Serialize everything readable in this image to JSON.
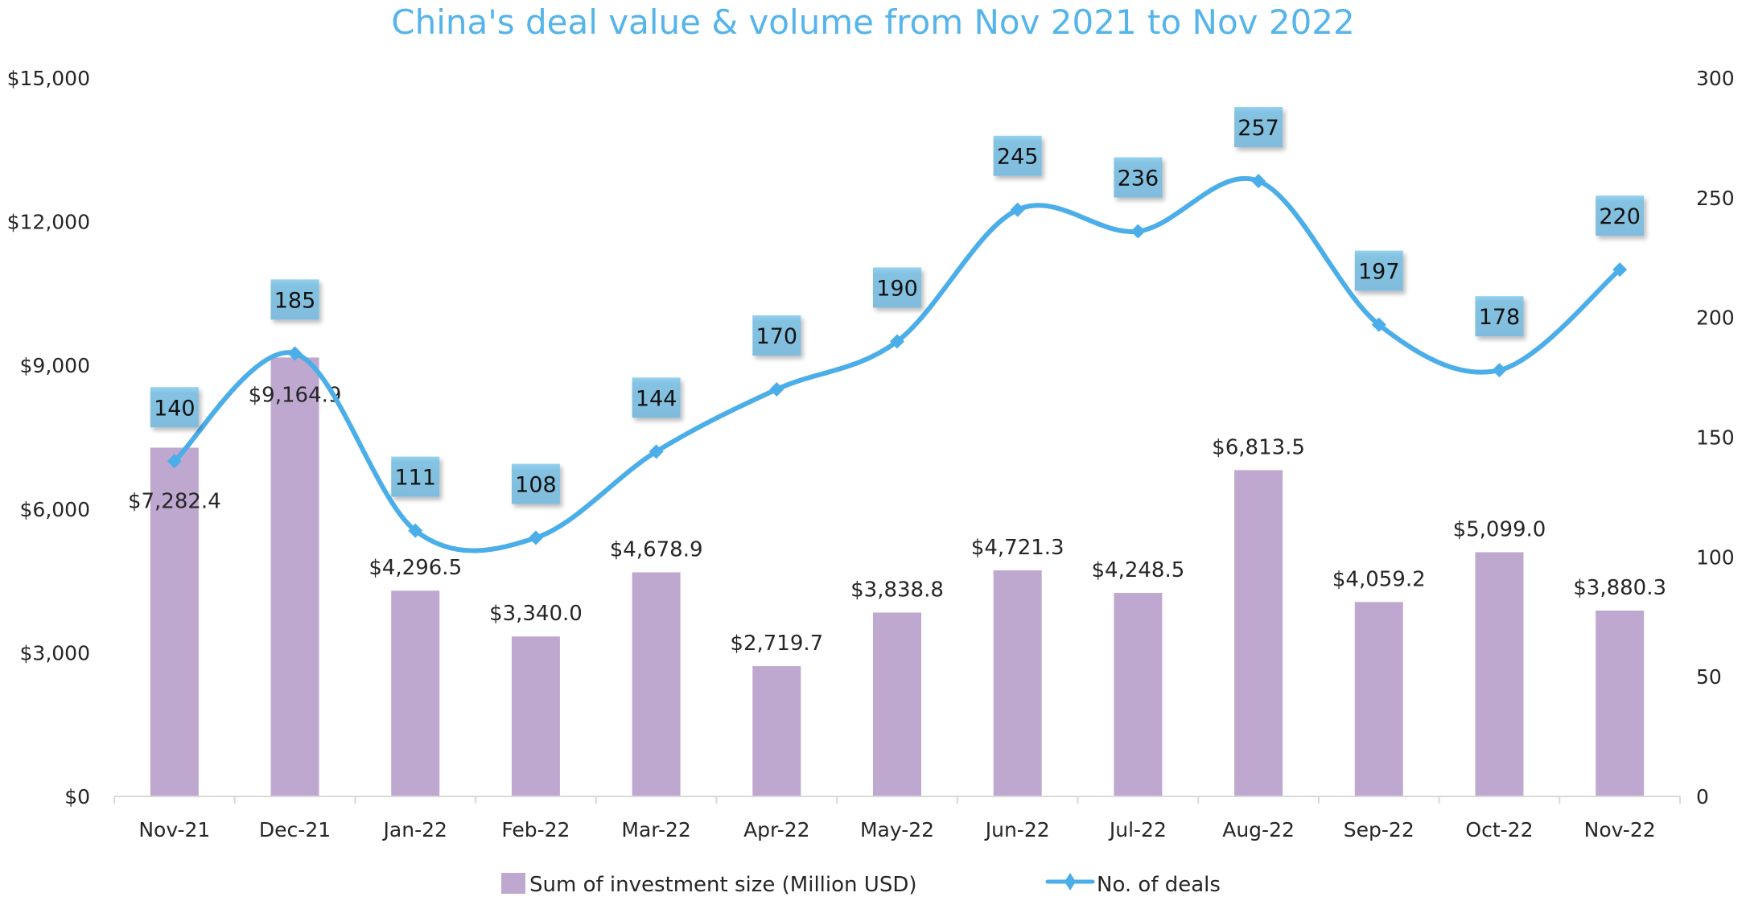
{
  "chart_data": {
    "type": "bar+line",
    "title": "China's deal value & volume from Nov 2021 to Nov 2022",
    "categories": [
      "Nov-21",
      "Dec-21",
      "Jan-22",
      "Feb-22",
      "Mar-22",
      "Apr-22",
      "May-22",
      "Jun-22",
      "Jul-22",
      "Aug-22",
      "Sep-22",
      "Oct-22",
      "Nov-22"
    ],
    "series": [
      {
        "name": "Sum of investment size (Million USD)",
        "type": "bar",
        "axis": "left",
        "color": "#bfa8d0",
        "values": [
          7282.4,
          9164.9,
          4296.5,
          3340.0,
          4678.9,
          2719.7,
          3838.8,
          4721.3,
          4248.5,
          6813.5,
          4059.2,
          5099.0,
          3880.3
        ],
        "labels": [
          "$7,282.4",
          "$9,164.9",
          "$4,296.5",
          "$3,340.0",
          "$4,678.9",
          "$2,719.7",
          "$3,838.8",
          "$4,721.3",
          "$4,248.5",
          "$6,813.5",
          "$4,059.2",
          "$5,099.0",
          "$3,880.3"
        ]
      },
      {
        "name": "No. of deals",
        "type": "line",
        "axis": "right",
        "color": "#4baee8",
        "label_box_color": "#7ebfe0",
        "values": [
          140,
          185,
          111,
          108,
          144,
          170,
          190,
          245,
          236,
          257,
          197,
          178,
          220
        ],
        "labels": [
          "140",
          "185",
          "111",
          "108",
          "144",
          "170",
          "190",
          "245",
          "236",
          "257",
          "197",
          "178",
          "220"
        ]
      }
    ],
    "y_left": {
      "ylim": [
        0,
        15000
      ],
      "ticks": [
        "$0",
        "$3,000",
        "$6,000",
        "$9,000",
        "$12,000",
        "$15,000"
      ],
      "tick_values": [
        0,
        3000,
        6000,
        9000,
        12000,
        15000
      ]
    },
    "y_right": {
      "ylim": [
        0,
        300
      ],
      "ticks": [
        "0",
        "50",
        "100",
        "150",
        "200",
        "250",
        "300"
      ],
      "tick_values": [
        0,
        50,
        100,
        150,
        200,
        250,
        300
      ]
    },
    "grid": false,
    "legend": {
      "position": "bottom",
      "entries": [
        "Sum of investment size (Million USD)",
        "No. of deals"
      ]
    }
  }
}
